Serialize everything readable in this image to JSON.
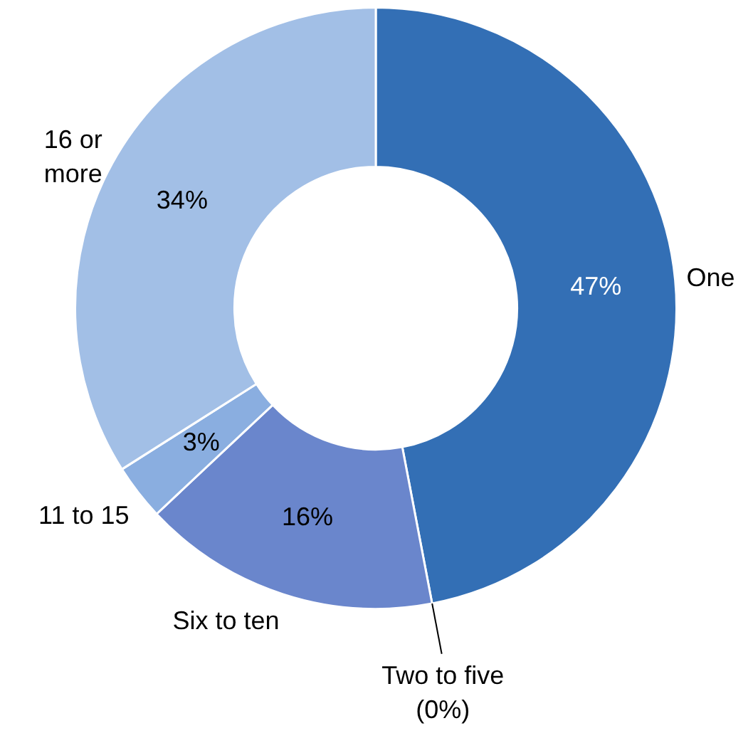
{
  "chart_data": {
    "type": "donut",
    "categories": [
      "One",
      "Two to five",
      "Six to ten",
      "11 to 15",
      "16 or more"
    ],
    "values": [
      47,
      0,
      16,
      3,
      34
    ],
    "value_labels": [
      "47%",
      "(0%)",
      "16%",
      "3%",
      "34%"
    ],
    "colors": [
      "#336fb5",
      "#4f7dc4",
      "#6a86cc",
      "#8aaee0",
      "#a2bfe6"
    ]
  }
}
